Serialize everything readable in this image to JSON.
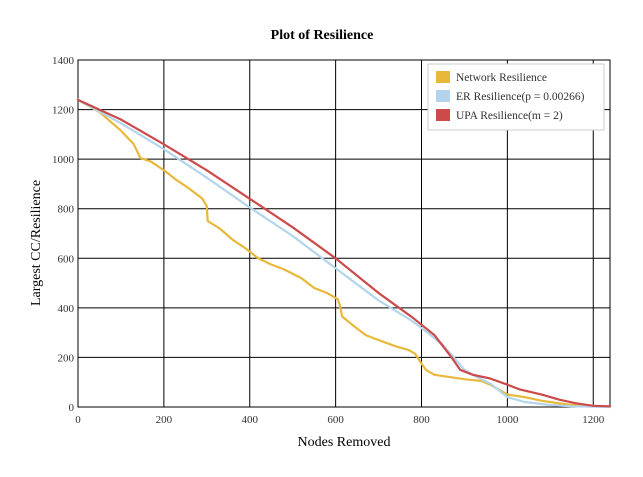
{
  "chart_data": {
    "type": "line",
    "title": "Plot of Resilience",
    "xlabel": "Nodes Removed",
    "ylabel": "Largest CC/Resilience",
    "xlim": [
      0,
      1239
    ],
    "ylim": [
      0,
      1400
    ],
    "xticks": [
      0,
      200,
      400,
      600,
      800,
      1000,
      1200
    ],
    "yticks": [
      0,
      200,
      400,
      600,
      800,
      1000,
      1200,
      1400
    ],
    "grid": true,
    "legend_position": "top-right",
    "series": [
      {
        "name": "Network Resilience",
        "color": "#e8b83a",
        "points": [
          [
            0,
            1239
          ],
          [
            50,
            1190
          ],
          [
            100,
            1115
          ],
          [
            130,
            1060
          ],
          [
            145,
            1005
          ],
          [
            170,
            990
          ],
          [
            200,
            955
          ],
          [
            230,
            915
          ],
          [
            260,
            880
          ],
          [
            290,
            840
          ],
          [
            300,
            810
          ],
          [
            302,
            750
          ],
          [
            330,
            720
          ],
          [
            360,
            675
          ],
          [
            390,
            640
          ],
          [
            420,
            600
          ],
          [
            450,
            575
          ],
          [
            480,
            555
          ],
          [
            520,
            520
          ],
          [
            550,
            480
          ],
          [
            580,
            460
          ],
          [
            605,
            435
          ],
          [
            610,
            410
          ],
          [
            615,
            365
          ],
          [
            640,
            330
          ],
          [
            670,
            290
          ],
          [
            700,
            270
          ],
          [
            740,
            245
          ],
          [
            770,
            230
          ],
          [
            785,
            215
          ],
          [
            800,
            175
          ],
          [
            810,
            150
          ],
          [
            830,
            130
          ],
          [
            870,
            120
          ],
          [
            900,
            112
          ],
          [
            940,
            105
          ],
          [
            960,
            90
          ],
          [
            980,
            70
          ],
          [
            1000,
            50
          ],
          [
            1040,
            40
          ],
          [
            1080,
            25
          ],
          [
            1140,
            10
          ],
          [
            1200,
            4
          ],
          [
            1239,
            1
          ]
        ]
      },
      {
        "name": "ER Resilience(p = 0.00266)",
        "color": "#b4d4ec",
        "points": [
          [
            0,
            1239
          ],
          [
            100,
            1145
          ],
          [
            200,
            1040
          ],
          [
            300,
            925
          ],
          [
            400,
            805
          ],
          [
            500,
            690
          ],
          [
            600,
            560
          ],
          [
            700,
            430
          ],
          [
            780,
            345
          ],
          [
            810,
            305
          ],
          [
            850,
            250
          ],
          [
            880,
            190
          ],
          [
            900,
            150
          ],
          [
            930,
            120
          ],
          [
            960,
            95
          ],
          [
            1000,
            40
          ],
          [
            1040,
            20
          ],
          [
            1100,
            8
          ],
          [
            1150,
            3
          ],
          [
            1239,
            0
          ]
        ]
      },
      {
        "name": "UPA Resilience(m = 2)",
        "color": "#cc4a4a",
        "points": [
          [
            0,
            1239
          ],
          [
            100,
            1160
          ],
          [
            200,
            1060
          ],
          [
            300,
            955
          ],
          [
            400,
            840
          ],
          [
            500,
            725
          ],
          [
            600,
            600
          ],
          [
            700,
            460
          ],
          [
            780,
            360
          ],
          [
            830,
            290
          ],
          [
            870,
            200
          ],
          [
            890,
            150
          ],
          [
            920,
            130
          ],
          [
            960,
            115
          ],
          [
            1000,
            90
          ],
          [
            1030,
            70
          ],
          [
            1080,
            50
          ],
          [
            1120,
            30
          ],
          [
            1160,
            15
          ],
          [
            1200,
            5
          ],
          [
            1239,
            3
          ]
        ]
      }
    ]
  }
}
